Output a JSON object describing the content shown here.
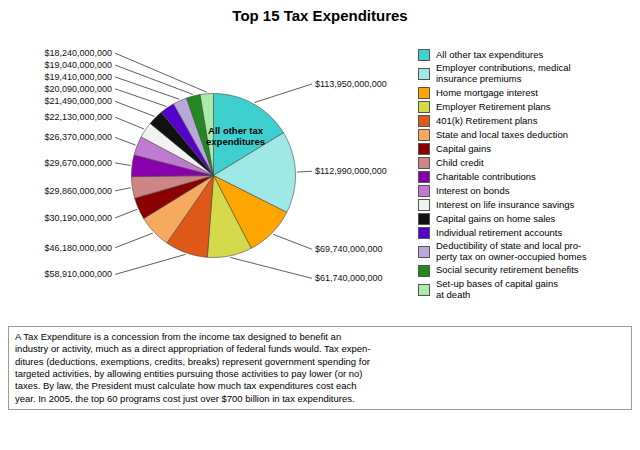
{
  "chart_data": {
    "type": "pie",
    "title": "Top 15 Tax Expenditures",
    "categories": [
      "All other tax expenditures",
      "Employer contributions, medical\ninsurance premiums",
      "Home mortgage interest",
      "Employer Retirement plans",
      "401(k) Retirement plans",
      "State and local taxes deduction",
      "Capital gains",
      "Child credit",
      "Charitable contributions",
      "Interest on bonds",
      "Interest on life insurance savings",
      "Capital gains on home sales",
      "Individual retirement accounts",
      "Deductibility of state and local pro-\nperty tax on owner-occupied homes",
      "Social security retirement benefits",
      "Set-up bases of capital gains\nat death"
    ],
    "values": [
      113950000000,
      112990000000,
      69740000000,
      61740000000,
      58910000000,
      46180000000,
      30190000000,
      29860000000,
      29670000000,
      26370000000,
      22130000000,
      21490000000,
      20090000000,
      19410000000,
      19040000000,
      18240000000
    ],
    "value_labels": [
      "$113,950,000,000",
      "$112,990,000,000",
      "$69,740,000,000",
      "$61,740,000,000",
      "$58,910,000,000",
      "$46,180,000,000",
      "$30,190,000,000",
      "$29,860,000,000",
      "$29,670,000,000",
      "$26,370,000,000",
      "$22,130,000,000",
      "$21,490,000,000",
      "$20,090,000,000",
      "$19,410,000,000",
      "$19,040,000,000",
      "$18,240,000,000"
    ],
    "colors": [
      "#3ecfcf",
      "#9ee8e8",
      "#ffa500",
      "#d4d94a",
      "#e05818",
      "#f5aa60",
      "#8b0000",
      "#cd8585",
      "#8800aa",
      "#c07ad0",
      "#f2f2f2",
      "#111111",
      "#5500cc",
      "#b8a8d8",
      "#228822",
      "#aaeaaa"
    ],
    "data_labels": true,
    "legend": "right",
    "annotations": [
      "All other tax\nexpenditures",
      "A Tax Expenditure is a concession from the income tax designed to benefit an\nindustry or activity, much as a direct appropriation of federal funds would. Tax expen-\nditures (deductions, exemptions, credits, breaks) represent government spending for\ntargeted activities, by allowing entities pursuing those activities to pay lower (or no)\ntaxes. By law, the President must calculate how much tax expenditures cost each\nyear. In 2005, the top 60 programs cost just over $700 billion in tax expenditures."
    ]
  }
}
